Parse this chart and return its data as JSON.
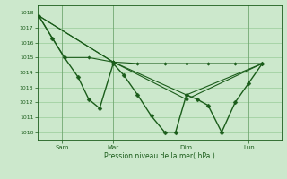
{
  "background_color": "#cce8cc",
  "grid_color": "#99cc99",
  "line_color": "#1a5c1a",
  "text_color": "#1a5c1a",
  "xlabel": "Pression niveau de la mer( hPa )",
  "ylim": [
    1009.5,
    1018.5
  ],
  "yticks": [
    1010,
    1011,
    1012,
    1013,
    1014,
    1015,
    1016,
    1017,
    1018
  ],
  "xlim": [
    0,
    9.0
  ],
  "xtick_labels": [
    "Sam",
    "Mar",
    "Dim",
    "Lun"
  ],
  "xtick_positions": [
    0.9,
    2.8,
    5.5,
    7.8
  ],
  "series": [
    {
      "x": [
        0.05,
        0.55,
        1.0,
        1.5,
        1.9,
        2.3,
        2.8,
        3.2,
        3.7,
        4.2,
        4.7,
        5.1,
        5.5,
        5.9,
        6.3,
        6.8,
        7.3,
        7.8,
        8.3
      ],
      "y": [
        1017.8,
        1016.3,
        1015.0,
        1013.7,
        1012.2,
        1011.6,
        1014.6,
        1013.8,
        1012.5,
        1011.1,
        1010.0,
        1010.0,
        1012.5,
        1012.2,
        1011.8,
        1010.0,
        1012.0,
        1013.3,
        1014.6
      ],
      "lw": 1.0,
      "ms": 2.5
    },
    {
      "x": [
        0.05,
        1.0,
        1.9,
        2.8,
        3.7,
        4.7,
        5.5,
        6.3,
        7.3,
        8.3
      ],
      "y": [
        1017.8,
        1015.0,
        1015.0,
        1014.7,
        1014.6,
        1014.6,
        1014.6,
        1014.6,
        1014.6,
        1014.6
      ],
      "lw": 0.8,
      "ms": 1.8
    },
    {
      "x": [
        0.05,
        2.8,
        5.5,
        8.3
      ],
      "y": [
        1017.8,
        1014.7,
        1012.5,
        1014.6
      ],
      "lw": 0.8,
      "ms": 1.8
    },
    {
      "x": [
        0.05,
        2.8,
        5.5,
        8.3
      ],
      "y": [
        1017.8,
        1014.7,
        1012.2,
        1014.6
      ],
      "lw": 0.8,
      "ms": 1.8
    }
  ],
  "figsize": [
    3.2,
    2.0
  ],
  "dpi": 100
}
